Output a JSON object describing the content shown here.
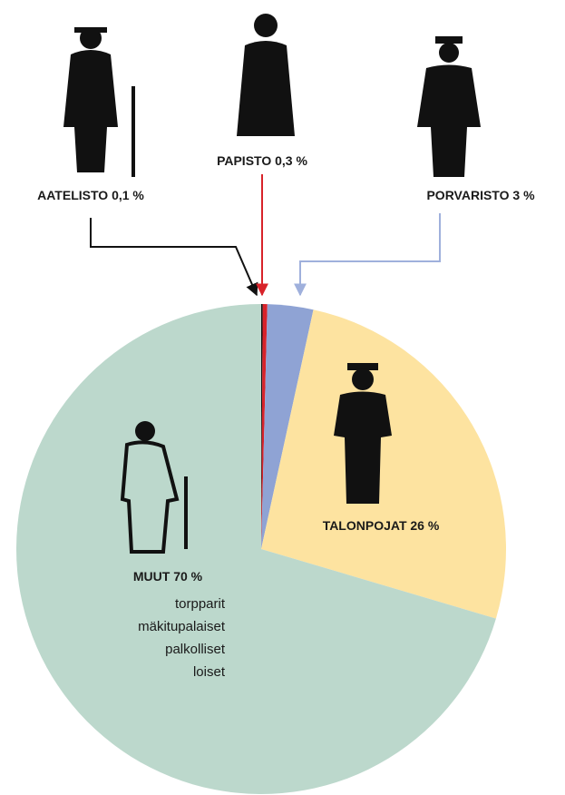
{
  "chart_data": {
    "type": "pie",
    "categories": [
      "AATELISTO",
      "PAPISTO",
      "PORVARISTO",
      "TALONPOJAT",
      "MUUT"
    ],
    "values": [
      0.1,
      0.3,
      3,
      26,
      70
    ],
    "value_labels": [
      "0,1 %",
      "0,3 %",
      "3 %",
      "26 %",
      "70 %"
    ],
    "colors": [
      "#111111",
      "#d8232a",
      "#8fa3d4",
      "#fde3a0",
      "#bcd8cc"
    ],
    "annotations": [
      "torpparit",
      "mäkitupalaiset",
      "palkolliset",
      "loiset"
    ]
  }
}
